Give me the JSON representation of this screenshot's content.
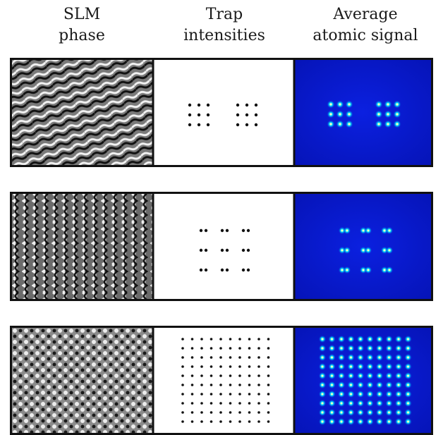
{
  "headers": {
    "slm": {
      "line1": "SLM",
      "line2": "phase"
    },
    "trap": {
      "line1": "Trap",
      "line2": "intensities"
    },
    "atomic": {
      "line1": "Average",
      "line2": "atomic signal"
    }
  },
  "rows": [
    {
      "name": "two-3x3-arrays",
      "phase_pattern": "diagonal-stripes",
      "spot_pattern": "two 3x3 clusters",
      "atomic_signal_colors": [
        "#0a1fd8",
        "#00e5ff",
        "#ffff66"
      ]
    },
    {
      "name": "3x3-spread-array",
      "phase_pattern": "vertical-wave-stripes",
      "spot_pattern": "3x3 grid of pairs",
      "atomic_signal_colors": [
        "#0a1fd8",
        "#00e5ff",
        "#ffff66"
      ]
    },
    {
      "name": "10x10-array",
      "phase_pattern": "mottled-checker",
      "spot_pattern": "10x10 grid",
      "atomic_signal_colors": [
        "#0a1fd8",
        "#00e5ff",
        "#ffff66"
      ]
    }
  ]
}
